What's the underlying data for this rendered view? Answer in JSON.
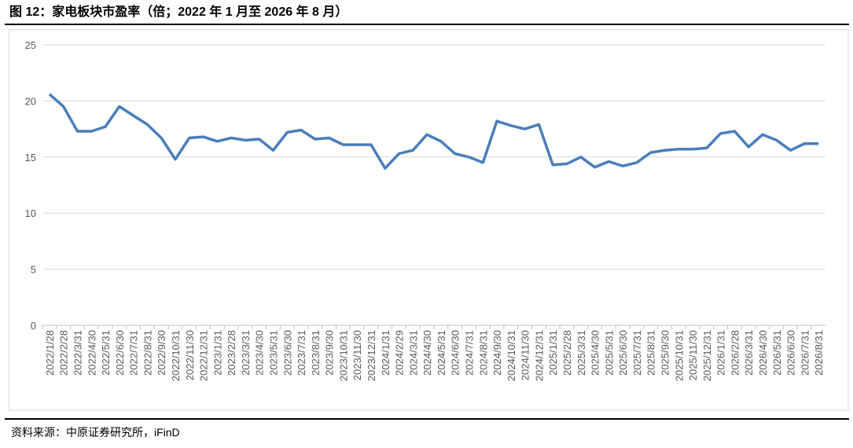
{
  "chart_data": {
    "type": "line",
    "title": "图 12：家电板块市盈率（倍；2022 年 1 月至 2026 年 8 月）",
    "source": "资料来源：中原证券研究所，iFinD",
    "categories": [
      "2022/1/28",
      "2022/2/28",
      "2022/3/31",
      "2022/4/30",
      "2022/5/31",
      "2022/6/30",
      "2022/7/31",
      "2022/8/31",
      "2022/9/30",
      "2022/10/31",
      "2022/11/30",
      "2022/12/31",
      "2023/1/31",
      "2023/2/28",
      "2023/3/31",
      "2023/4/30",
      "2023/5/31",
      "2023/6/30",
      "2023/7/31",
      "2023/8/31",
      "2023/9/30",
      "2023/10/31",
      "2023/11/30",
      "2023/12/31",
      "2024/1/31",
      "2024/2/29",
      "2024/3/31",
      "2024/4/30",
      "2024/5/31",
      "2024/6/30",
      "2024/7/31",
      "2024/8/31",
      "2024/9/30",
      "2024/10/31",
      "2024/11/30",
      "2024/12/31",
      "2025/1/31",
      "2025/2/28",
      "2025/3/31",
      "2025/4/30",
      "2025/5/31",
      "2025/6/30",
      "2025/7/31",
      "2025/8/31",
      "2025/9/30",
      "2025/10/31",
      "2025/11/30",
      "2025/12/31",
      "2026/1/31",
      "2026/2/28",
      "2026/3/31",
      "2026/4/30",
      "2026/5/31",
      "2026/6/30",
      "2026/7/31",
      "2026/8/31"
    ],
    "values": [
      20.6,
      19.5,
      17.3,
      17.3,
      17.7,
      19.5,
      18.7,
      17.9,
      16.7,
      14.8,
      16.7,
      16.8,
      16.4,
      16.7,
      16.5,
      16.6,
      15.6,
      17.2,
      17.4,
      16.6,
      16.7,
      16.1,
      16.1,
      16.1,
      14.0,
      15.3,
      15.6,
      17.0,
      16.4,
      15.3,
      15.0,
      14.5,
      18.2,
      17.8,
      17.5,
      17.9,
      14.3,
      14.4,
      15.0,
      14.1,
      14.6,
      14.2,
      14.5,
      15.4,
      15.6,
      15.7,
      15.7,
      15.8,
      17.1,
      17.3,
      15.9,
      17.0,
      16.5,
      15.6,
      16.2,
      16.2
    ],
    "color": "#4a7ebb",
    "ylim": [
      0,
      25
    ],
    "yticks": [
      0,
      5,
      10,
      15,
      20,
      25
    ],
    "grid": true
  }
}
